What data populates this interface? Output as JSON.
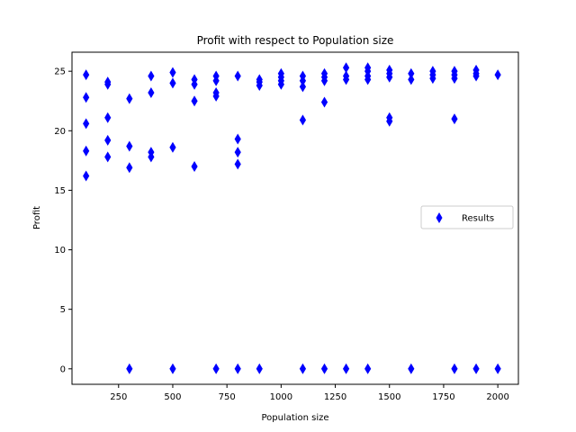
{
  "chart_data": {
    "type": "scatter",
    "title": "Profit with respect to Population size",
    "xlabel": "Population size",
    "ylabel": "Profit",
    "xlim": [
      35,
      2095
    ],
    "ylim": [
      -1.3,
      26.6
    ],
    "xticks": [
      250,
      500,
      750,
      1000,
      1250,
      1500,
      1750,
      2000
    ],
    "xtick_labels": [
      "250",
      "500",
      "750",
      "1000",
      "1250",
      "1500",
      "1750",
      "2000"
    ],
    "yticks": [
      0,
      5,
      10,
      15,
      20,
      25
    ],
    "ytick_labels": [
      "0",
      "5",
      "10",
      "15",
      "20",
      "25"
    ],
    "grid": false,
    "legend_position": "center-right",
    "marker": "diamond",
    "series": [
      {
        "name": "Results",
        "color": "#0000ff",
        "points": [
          [
            100,
            24.7
          ],
          [
            100,
            22.8
          ],
          [
            100,
            20.6
          ],
          [
            100,
            18.3
          ],
          [
            100,
            16.2
          ],
          [
            200,
            24.1
          ],
          [
            200,
            23.9
          ],
          [
            200,
            21.1
          ],
          [
            200,
            19.2
          ],
          [
            200,
            17.8
          ],
          [
            300,
            22.7
          ],
          [
            300,
            18.7
          ],
          [
            300,
            16.9
          ],
          [
            300,
            0
          ],
          [
            400,
            24.6
          ],
          [
            400,
            23.2
          ],
          [
            400,
            18.2
          ],
          [
            400,
            17.8
          ],
          [
            500,
            24.9
          ],
          [
            500,
            24.0
          ],
          [
            500,
            18.6
          ],
          [
            500,
            0
          ],
          [
            600,
            24.3
          ],
          [
            600,
            23.9
          ],
          [
            600,
            22.5
          ],
          [
            600,
            17.0
          ],
          [
            700,
            24.6
          ],
          [
            700,
            24.2
          ],
          [
            700,
            23.2
          ],
          [
            700,
            22.9
          ],
          [
            700,
            0
          ],
          [
            800,
            24.6
          ],
          [
            800,
            19.3
          ],
          [
            800,
            18.2
          ],
          [
            800,
            17.2
          ],
          [
            800,
            0
          ],
          [
            900,
            24.3
          ],
          [
            900,
            24.1
          ],
          [
            900,
            23.8
          ],
          [
            900,
            0
          ],
          [
            1000,
            24.8
          ],
          [
            1000,
            24.5
          ],
          [
            1000,
            24.2
          ],
          [
            1000,
            23.9
          ],
          [
            1100,
            24.6
          ],
          [
            1100,
            24.2
          ],
          [
            1100,
            23.7
          ],
          [
            1100,
            20.9
          ],
          [
            1100,
            0
          ],
          [
            1200,
            24.8
          ],
          [
            1200,
            24.5
          ],
          [
            1200,
            24.2
          ],
          [
            1200,
            22.4
          ],
          [
            1200,
            0
          ],
          [
            1300,
            25.3
          ],
          [
            1300,
            24.6
          ],
          [
            1300,
            24.3
          ],
          [
            1300,
            0
          ],
          [
            1400,
            25.3
          ],
          [
            1400,
            25.0
          ],
          [
            1400,
            24.6
          ],
          [
            1400,
            24.3
          ],
          [
            1400,
            0
          ],
          [
            1500,
            25.1
          ],
          [
            1500,
            24.8
          ],
          [
            1500,
            24.5
          ],
          [
            1500,
            21.1
          ],
          [
            1500,
            20.8
          ],
          [
            1600,
            24.8
          ],
          [
            1600,
            24.3
          ],
          [
            1600,
            0
          ],
          [
            1700,
            25.0
          ],
          [
            1700,
            24.7
          ],
          [
            1700,
            24.4
          ],
          [
            1800,
            25.0
          ],
          [
            1800,
            24.7
          ],
          [
            1800,
            24.4
          ],
          [
            1800,
            21.0
          ],
          [
            1800,
            0
          ],
          [
            1900,
            25.1
          ],
          [
            1900,
            24.8
          ],
          [
            1900,
            24.6
          ],
          [
            1900,
            0
          ],
          [
            2000,
            24.7
          ],
          [
            2000,
            0
          ]
        ]
      }
    ]
  }
}
